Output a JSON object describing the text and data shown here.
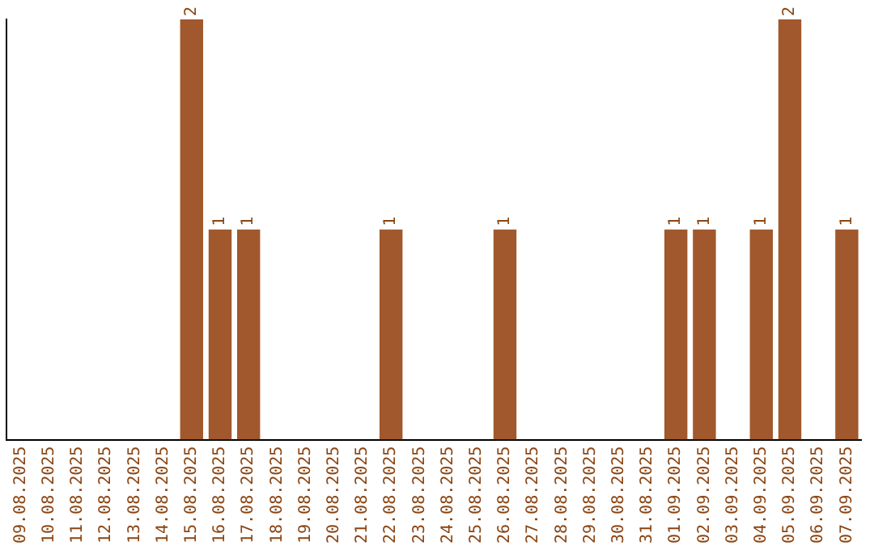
{
  "chart_data": {
    "type": "bar",
    "categories": [
      "09.08.2025",
      "10.08.2025",
      "11.08.2025",
      "12.08.2025",
      "13.08.2025",
      "14.08.2025",
      "15.08.2025",
      "16.08.2025",
      "17.08.2025",
      "18.08.2025",
      "19.08.2025",
      "20.08.2025",
      "21.08.2025",
      "22.08.2025",
      "23.08.2025",
      "24.08.2025",
      "25.08.2025",
      "26.08.2025",
      "27.08.2025",
      "28.08.2025",
      "29.08.2025",
      "30.08.2025",
      "31.08.2025",
      "01.09.2025",
      "02.09.2025",
      "03.09.2025",
      "04.09.2025",
      "05.09.2025",
      "06.09.2025",
      "07.09.2025"
    ],
    "values": [
      0,
      0,
      0,
      0,
      0,
      0,
      2,
      1,
      1,
      0,
      0,
      0,
      0,
      1,
      0,
      0,
      0,
      1,
      0,
      0,
      0,
      0,
      0,
      1,
      1,
      0,
      1,
      2,
      0,
      1
    ],
    "value_labels": [
      null,
      null,
      null,
      null,
      null,
      null,
      "2",
      "1",
      "1",
      null,
      null,
      null,
      null,
      "1",
      null,
      null,
      null,
      "1",
      null,
      null,
      null,
      null,
      null,
      "1",
      "1",
      null,
      "1",
      "2",
      null,
      "1"
    ],
    "color": "#a0582c",
    "grid": false,
    "legend": false,
    "tick_labels": "x"
  }
}
